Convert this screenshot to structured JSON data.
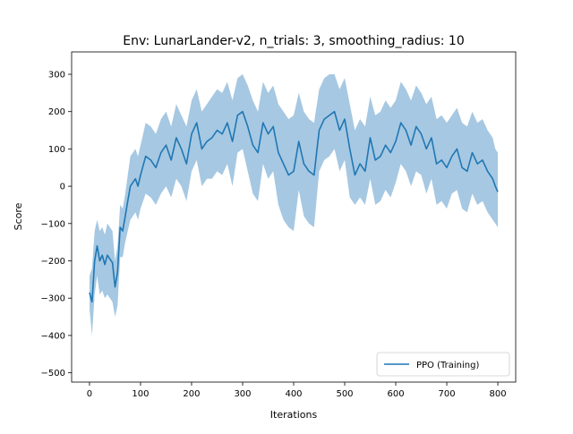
{
  "chart_data": {
    "type": "line",
    "title": "Env: LunarLander-v2, n_trials: 3, smoothing_radius: 10",
    "xlabel": "Iterations",
    "ylabel": "Score",
    "xlim": [
      -35,
      835
    ],
    "ylim": [
      -525,
      360
    ],
    "xticks": [
      0,
      100,
      200,
      300,
      400,
      500,
      600,
      700,
      800
    ],
    "yticks": [
      -500,
      -400,
      -300,
      -200,
      -100,
      0,
      100,
      200,
      300
    ],
    "legend": {
      "position": "lower-right",
      "entries": [
        "PPO (Training)"
      ]
    },
    "series": [
      {
        "name": "PPO (Training)",
        "color": "#1f77b4",
        "band_color": "#a6c8e2",
        "x": [
          0,
          5,
          10,
          15,
          20,
          25,
          30,
          35,
          40,
          45,
          50,
          55,
          60,
          65,
          70,
          75,
          80,
          85,
          90,
          95,
          100,
          110,
          120,
          130,
          140,
          150,
          160,
          170,
          180,
          190,
          200,
          210,
          220,
          230,
          240,
          250,
          260,
          270,
          280,
          290,
          300,
          310,
          320,
          330,
          340,
          350,
          360,
          370,
          380,
          390,
          400,
          410,
          420,
          430,
          440,
          450,
          460,
          470,
          480,
          490,
          500,
          510,
          520,
          530,
          540,
          550,
          560,
          570,
          580,
          590,
          600,
          610,
          620,
          630,
          640,
          650,
          660,
          670,
          680,
          690,
          700,
          710,
          720,
          730,
          740,
          750,
          760,
          770,
          780,
          790,
          795,
          800
        ],
        "mean": [
          -285,
          -310,
          -200,
          -160,
          -200,
          -185,
          -210,
          -185,
          -195,
          -205,
          -270,
          -230,
          -110,
          -120,
          -80,
          -40,
          0,
          10,
          20,
          0,
          30,
          80,
          70,
          50,
          90,
          110,
          70,
          130,
          100,
          60,
          140,
          170,
          100,
          120,
          130,
          150,
          140,
          170,
          120,
          190,
          200,
          160,
          110,
          90,
          170,
          140,
          160,
          90,
          60,
          30,
          40,
          120,
          60,
          40,
          30,
          150,
          180,
          190,
          200,
          150,
          180,
          100,
          30,
          60,
          40,
          130,
          70,
          80,
          110,
          90,
          120,
          170,
          150,
          110,
          160,
          140,
          100,
          130,
          60,
          70,
          50,
          80,
          100,
          50,
          40,
          90,
          60,
          70,
          40,
          20,
          0,
          -15
        ],
        "upper": [
          -240,
          -220,
          -120,
          -90,
          -120,
          -110,
          -130,
          -100,
          -110,
          -120,
          -200,
          -160,
          -50,
          -60,
          -20,
          30,
          80,
          90,
          100,
          80,
          110,
          170,
          160,
          140,
          180,
          200,
          160,
          220,
          190,
          160,
          230,
          260,
          200,
          220,
          240,
          260,
          250,
          280,
          230,
          290,
          300,
          270,
          230,
          200,
          280,
          250,
          270,
          220,
          200,
          180,
          190,
          250,
          200,
          180,
          170,
          260,
          290,
          300,
          300,
          260,
          290,
          220,
          150,
          180,
          160,
          240,
          190,
          200,
          230,
          210,
          230,
          280,
          260,
          230,
          270,
          250,
          220,
          240,
          180,
          190,
          170,
          190,
          210,
          170,
          160,
          200,
          170,
          180,
          150,
          130,
          100,
          90
        ],
        "lower": [
          -330,
          -400,
          -290,
          -240,
          -290,
          -280,
          -300,
          -290,
          -300,
          -310,
          -350,
          -320,
          -190,
          -190,
          -150,
          -120,
          -90,
          -80,
          -70,
          -90,
          -60,
          -20,
          -30,
          -50,
          -20,
          0,
          -30,
          20,
          0,
          -40,
          40,
          70,
          0,
          20,
          20,
          40,
          30,
          60,
          0,
          90,
          100,
          40,
          -20,
          -40,
          60,
          20,
          40,
          -50,
          -90,
          -110,
          -120,
          -10,
          -80,
          -100,
          -110,
          40,
          70,
          80,
          100,
          40,
          70,
          -30,
          -50,
          -30,
          -50,
          20,
          -50,
          -40,
          -10,
          -30,
          10,
          60,
          40,
          0,
          40,
          30,
          -20,
          20,
          -50,
          -40,
          -60,
          -20,
          -10,
          -60,
          -70,
          -20,
          -50,
          -40,
          -70,
          -90,
          -100,
          -110
        ]
      }
    ]
  }
}
